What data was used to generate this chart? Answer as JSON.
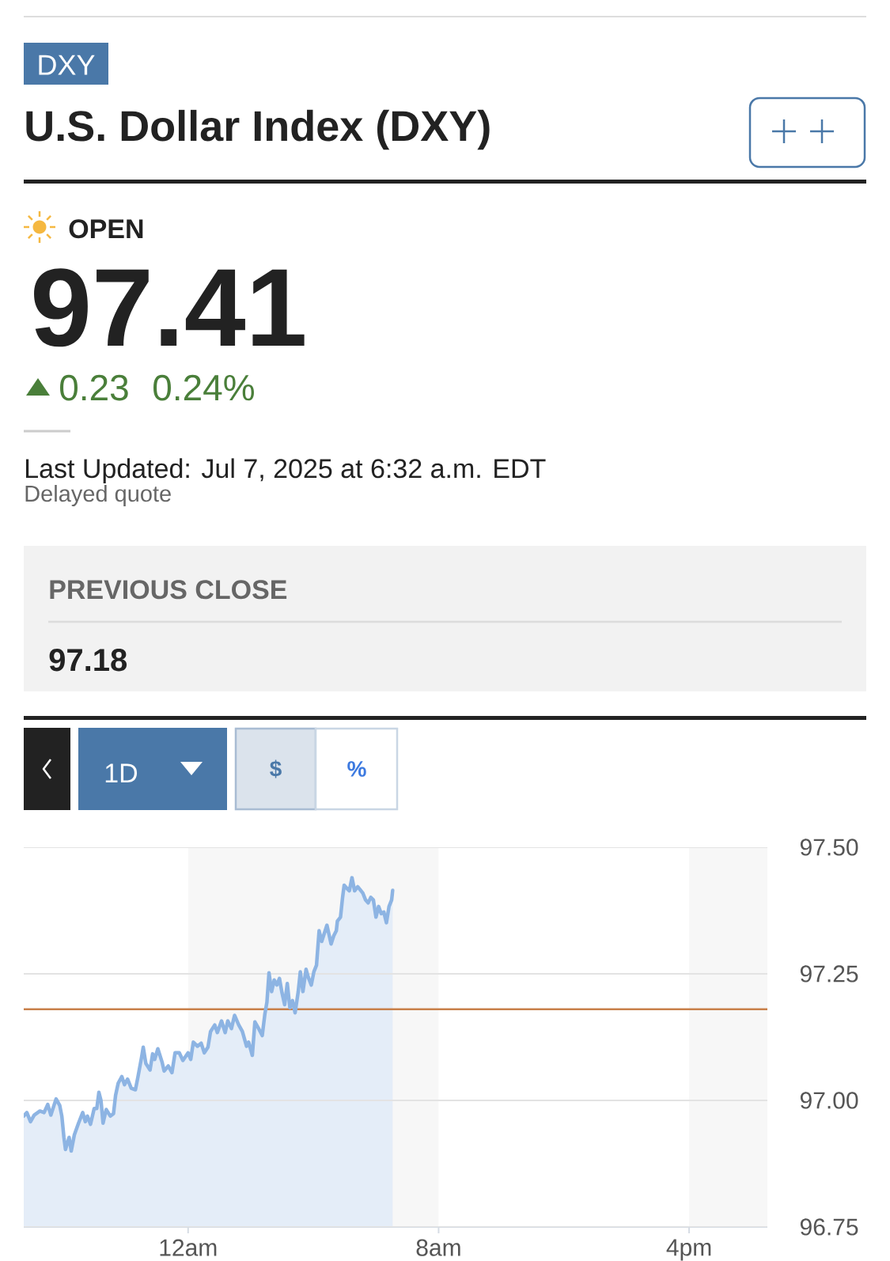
{
  "chart_data": {
    "type": "area",
    "title": "U.S. Dollar Index (DXY)",
    "annotations": [
      "DXY",
      "OPEN",
      "97.41",
      "0.23",
      "0.24%",
      "Last Updated: Jul 7, 2025 at 6:32 a.m. EDT",
      "Delayed quote",
      "PREVIOUS CLOSE",
      "97.18",
      "1D",
      "$",
      "%"
    ],
    "x": [
      "2025-07-06T18:45",
      "2025-07-06T18:51",
      "2025-07-06T18:58",
      "2025-07-06T19:05",
      "2025-07-06T19:16",
      "2025-07-06T19:24",
      "2025-07-06T19:31",
      "2025-07-06T19:37",
      "2025-07-06T19:47",
      "2025-07-06T19:54",
      "2025-07-06T19:58",
      "2025-07-06T20:02",
      "2025-07-06T20:05",
      "2025-07-06T20:12",
      "2025-07-06T20:16",
      "2025-07-06T20:22",
      "2025-07-06T20:30",
      "2025-07-06T20:38",
      "2025-07-06T20:43",
      "2025-07-06T20:47",
      "2025-07-06T20:53",
      "2025-07-06T21:00",
      "2025-07-06T21:05",
      "2025-07-06T21:09",
      "2025-07-06T21:13",
      "2025-07-06T21:17",
      "2025-07-06T21:23",
      "2025-07-06T21:31",
      "2025-07-06T21:37",
      "2025-07-06T21:41",
      "2025-07-06T21:46",
      "2025-07-06T21:53",
      "2025-07-06T21:58",
      "2025-07-06T22:04",
      "2025-07-06T22:11",
      "2025-07-06T22:19",
      "2025-07-06T22:24",
      "2025-07-06T22:31",
      "2025-07-06T22:34",
      "2025-07-06T22:39",
      "2025-07-06T22:47",
      "2025-07-06T22:52",
      "2025-07-06T22:56",
      "2025-07-06T23:02",
      "2025-07-06T23:10",
      "2025-07-06T23:14",
      "2025-07-06T23:22",
      "2025-07-06T23:29",
      "2025-07-06T23:35",
      "2025-07-06T23:43",
      "2025-07-06T23:50",
      "2025-07-07T00:00",
      "2025-07-07T00:05",
      "2025-07-07T00:10",
      "2025-07-07T00:18",
      "2025-07-07T00:25",
      "2025-07-07T00:31",
      "2025-07-07T00:38",
      "2025-07-07T00:43",
      "2025-07-07T00:51",
      "2025-07-07T00:56",
      "2025-07-07T01:04",
      "2025-07-07T01:11",
      "2025-07-07T01:16",
      "2025-07-07T01:23",
      "2025-07-07T01:29",
      "2025-07-07T01:37",
      "2025-07-07T01:44",
      "2025-07-07T01:52",
      "2025-07-07T01:56",
      "2025-07-07T02:03",
      "2025-07-07T02:08",
      "2025-07-07T02:14",
      "2025-07-07T02:22",
      "2025-07-07T02:27",
      "2025-07-07T02:31",
      "2025-07-07T02:35",
      "2025-07-07T02:40",
      "2025-07-07T02:45",
      "2025-07-07T02:50",
      "2025-07-07T02:55",
      "2025-07-07T03:00",
      "2025-07-07T03:05",
      "2025-07-07T03:10",
      "2025-07-07T03:15",
      "2025-07-07T03:20",
      "2025-07-07T03:25",
      "2025-07-07T03:31",
      "2025-07-07T03:35",
      "2025-07-07T03:40",
      "2025-07-07T03:46",
      "2025-07-07T03:50",
      "2025-07-07T03:56",
      "2025-07-07T04:01",
      "2025-07-07T04:06",
      "2025-07-07T04:11",
      "2025-07-07T04:16",
      "2025-07-07T04:21",
      "2025-07-07T04:26",
      "2025-07-07T04:34",
      "2025-07-07T04:39",
      "2025-07-07T04:44",
      "2025-07-07T04:46",
      "2025-07-07T04:52",
      "2025-07-07T04:56",
      "2025-07-07T04:59",
      "2025-07-07T05:04",
      "2025-07-07T05:09",
      "2025-07-07T05:14",
      "2025-07-07T05:19",
      "2025-07-07T05:25",
      "2025-07-07T05:29",
      "2025-07-07T05:35",
      "2025-07-07T05:40",
      "2025-07-07T05:45",
      "2025-07-07T05:50",
      "2025-07-07T05:55",
      "2025-07-07T06:00",
      "2025-07-07T06:05",
      "2025-07-07T06:10",
      "2025-07-07T06:15",
      "2025-07-07T06:20",
      "2025-07-07T06:25",
      "2025-07-07T06:30",
      "2025-07-07T06:32"
    ],
    "series": [
      {
        "color": "#8db4e3",
        "values": [
          96.969,
          96.976,
          96.958,
          96.971,
          96.979,
          96.976,
          96.992,
          96.971,
          97.003,
          96.99,
          96.969,
          96.927,
          96.903,
          96.927,
          96.9,
          96.932,
          96.955,
          96.976,
          96.958,
          96.969,
          96.953,
          96.984,
          96.984,
          97.016,
          97.0,
          96.955,
          96.982,
          96.969,
          96.974,
          97.01,
          97.034,
          97.047,
          97.031,
          97.042,
          97.024,
          97.021,
          97.047,
          97.086,
          97.105,
          97.073,
          97.06,
          97.092,
          97.081,
          97.102,
          97.076,
          97.058,
          97.068,
          97.055,
          97.094,
          97.094,
          97.079,
          97.094,
          97.081,
          97.115,
          97.107,
          97.113,
          97.094,
          97.105,
          97.136,
          97.149,
          97.134,
          97.157,
          97.134,
          97.157,
          97.142,
          97.168,
          97.149,
          97.136,
          97.107,
          97.115,
          97.089,
          97.155,
          97.144,
          97.128,
          97.17,
          97.194,
          97.252,
          97.215,
          97.238,
          97.228,
          97.241,
          97.212,
          97.189,
          97.231,
          97.183,
          97.197,
          97.173,
          97.215,
          97.254,
          97.215,
          97.259,
          97.244,
          97.228,
          97.254,
          97.267,
          97.335,
          97.314,
          97.33,
          97.346,
          97.309,
          97.325,
          97.335,
          97.354,
          97.362,
          97.401,
          97.425,
          97.419,
          97.414,
          97.44,
          97.414,
          97.422,
          97.417,
          97.409,
          97.396,
          97.39,
          97.401,
          97.396,
          97.362,
          97.383,
          97.369,
          97.372,
          97.351,
          97.383,
          97.396,
          97.415
        ]
      }
    ],
    "xlim": [
      "2025-07-06T18:45",
      "2025-07-07T18:30"
    ],
    "xticks": [
      {
        "value": "2025-07-07T00:00",
        "label": "12am"
      },
      {
        "value": "2025-07-07T08:00",
        "label": "8am"
      },
      {
        "value": "2025-07-07T16:00",
        "label": "4pm"
      }
    ],
    "ylim": [
      96.75,
      97.5
    ],
    "yticks": [
      96.75,
      {
        "value": 97,
        "label": "97.00"
      },
      97.25,
      {
        "value": 97.5,
        "label": "97.50"
      }
    ],
    "grid": "y",
    "ref_lines": [
      {
        "axis": "y",
        "value": 97.18,
        "color": "#c8804a"
      }
    ],
    "bands": [
      {
        "axis": "x",
        "from": "2025-07-07T00:00",
        "to": "2025-07-07T08:00",
        "color": "#f7f7f7"
      },
      {
        "axis": "x",
        "from": "2025-07-07T16:00",
        "to": "2025-07-07T18:30",
        "color": "#f7f7f7"
      }
    ]
  }
}
